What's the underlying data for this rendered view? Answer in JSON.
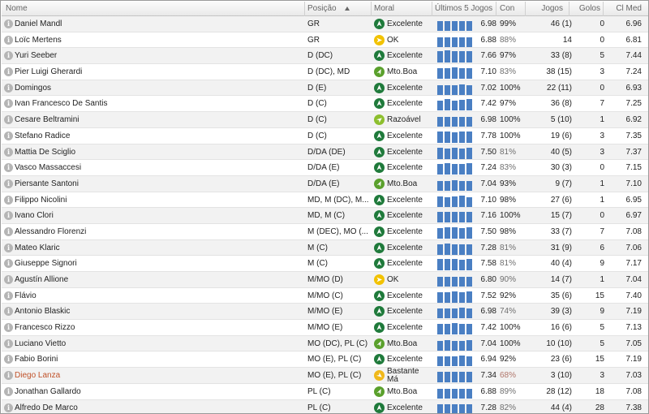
{
  "header": {
    "nome": "Nome",
    "posicao": "Posição",
    "moral": "Moral",
    "ultimos": "Últimos 5 Jogos",
    "con": "Con",
    "jogos": "Jogos",
    "golos": "Golos",
    "clmed": "Cl Med"
  },
  "colors": {
    "excelente": "#1f7a3b",
    "mto_boa": "#5aa02c",
    "razoavel": "#8dbf2e",
    "ok": "#f2c200",
    "bastante_ma": "#f0b81a",
    "bar": "#4a7fc3",
    "highlight_name": "#c0522a"
  },
  "players": [
    {
      "name": "Daniel Mandl",
      "pos": "GR",
      "moral": "Excelente",
      "moral_icon": "excelente-icon",
      "form": [
        0.78,
        0.78,
        0.78,
        0.78,
        0.78
      ],
      "avg": "6.98",
      "con": "99%",
      "jogos": "46 (1)",
      "golos": "0",
      "clmed": "6.96"
    },
    {
      "name": "Loïc Mertens",
      "pos": "GR",
      "moral": "OK",
      "moral_icon": "ok-icon",
      "form": [
        0.72,
        0.74,
        0.72,
        0.74,
        0.72
      ],
      "avg": "6.88",
      "con": "88%",
      "jogos": "14",
      "golos": "0",
      "clmed": "6.81"
    },
    {
      "name": "Yuri Seeber",
      "pos": "D (DC)",
      "moral": "Excelente",
      "moral_icon": "excelente-icon",
      "form": [
        0.85,
        0.95,
        0.85,
        0.85,
        0.85
      ],
      "avg": "7.66",
      "con": "97%",
      "jogos": "33 (8)",
      "golos": "5",
      "clmed": "7.44"
    },
    {
      "name": "Pier Luigi Gherardi",
      "pos": "D (DC), MD",
      "moral": "Mto.Boa",
      "moral_icon": "mto-boa-icon",
      "form": [
        0.8,
        0.8,
        0.9,
        0.8,
        0.8
      ],
      "avg": "7.10",
      "con": "83%",
      "jogos": "38 (15)",
      "golos": "3",
      "clmed": "7.24"
    },
    {
      "name": "Domingos",
      "pos": "D (E)",
      "moral": "Excelente",
      "moral_icon": "excelente-icon",
      "form": [
        0.78,
        0.78,
        0.78,
        0.8,
        0.78
      ],
      "avg": "7.02",
      "con": "100%",
      "jogos": "22 (11)",
      "golos": "0",
      "clmed": "6.93"
    },
    {
      "name": "Ivan Francesco De Santis",
      "pos": "D (C)",
      "moral": "Excelente",
      "moral_icon": "excelente-icon",
      "form": [
        0.78,
        0.85,
        0.75,
        0.8,
        0.85
      ],
      "avg": "7.42",
      "con": "97%",
      "jogos": "36 (8)",
      "golos": "7",
      "clmed": "7.25"
    },
    {
      "name": "Cesare Beltramini",
      "pos": "D (C)",
      "moral": "Razoável",
      "moral_icon": "razoavel-icon",
      "form": [
        0.78,
        0.78,
        0.78,
        0.78,
        0.78
      ],
      "avg": "6.98",
      "con": "100%",
      "jogos": "5 (10)",
      "golos": "1",
      "clmed": "6.92"
    },
    {
      "name": "Stefano Radice",
      "pos": "D (C)",
      "moral": "Excelente",
      "moral_icon": "excelente-icon",
      "form": [
        0.85,
        0.9,
        0.8,
        0.9,
        0.85
      ],
      "avg": "7.78",
      "con": "100%",
      "jogos": "19 (6)",
      "golos": "3",
      "clmed": "7.35"
    },
    {
      "name": "Mattia De Sciglio",
      "pos": "D/DA (DE)",
      "moral": "Excelente",
      "moral_icon": "excelente-icon",
      "form": [
        0.85,
        0.82,
        0.88,
        0.82,
        0.85
      ],
      "avg": "7.50",
      "con": "81%",
      "jogos": "40 (5)",
      "golos": "3",
      "clmed": "7.37"
    },
    {
      "name": "Vasco Massaccesi",
      "pos": "D/DA (E)",
      "moral": "Excelente",
      "moral_icon": "excelente-icon",
      "form": [
        0.8,
        0.85,
        0.8,
        0.8,
        0.85
      ],
      "avg": "7.24",
      "con": "83%",
      "jogos": "30 (3)",
      "golos": "0",
      "clmed": "7.15"
    },
    {
      "name": "Piersante Santoni",
      "pos": "D/DA (E)",
      "moral": "Mto.Boa",
      "moral_icon": "mto-boa-icon",
      "form": [
        0.78,
        0.78,
        0.8,
        0.78,
        0.78
      ],
      "avg": "7.04",
      "con": "93%",
      "jogos": "9 (7)",
      "golos": "1",
      "clmed": "7.10"
    },
    {
      "name": "Filippo Nicolini",
      "pos": "MD, M (DC), M...",
      "moral": "Excelente",
      "moral_icon": "excelente-icon",
      "form": [
        0.8,
        0.78,
        0.8,
        0.85,
        0.78
      ],
      "avg": "7.10",
      "con": "98%",
      "jogos": "27 (6)",
      "golos": "1",
      "clmed": "6.95"
    },
    {
      "name": "Ivano Clori",
      "pos": "MD, M (C)",
      "moral": "Excelente",
      "moral_icon": "excelente-icon",
      "form": [
        0.8,
        0.82,
        0.8,
        0.8,
        0.82
      ],
      "avg": "7.16",
      "con": "100%",
      "jogos": "15 (7)",
      "golos": "0",
      "clmed": "6.97"
    },
    {
      "name": "Alessandro Florenzi",
      "pos": "M (DEC), MO (...",
      "moral": "Excelente",
      "moral_icon": "excelente-icon",
      "form": [
        0.82,
        0.85,
        0.85,
        0.82,
        0.85
      ],
      "avg": "7.50",
      "con": "98%",
      "jogos": "33 (7)",
      "golos": "7",
      "clmed": "7.08"
    },
    {
      "name": "Mateo Klaric",
      "pos": "M (C)",
      "moral": "Excelente",
      "moral_icon": "excelente-icon",
      "form": [
        0.8,
        0.85,
        0.8,
        0.8,
        0.82
      ],
      "avg": "7.28",
      "con": "81%",
      "jogos": "31 (9)",
      "golos": "6",
      "clmed": "7.06"
    },
    {
      "name": "Giuseppe Signori",
      "pos": "M (C)",
      "moral": "Excelente",
      "moral_icon": "excelente-icon",
      "form": [
        0.85,
        0.9,
        0.85,
        0.8,
        0.85
      ],
      "avg": "7.58",
      "con": "81%",
      "jogos": "40 (4)",
      "golos": "9",
      "clmed": "7.17"
    },
    {
      "name": "Agustín Allione",
      "pos": "M/MO (D)",
      "moral": "OK",
      "moral_icon": "ok-icon",
      "form": [
        0.72,
        0.75,
        0.72,
        0.72,
        0.75
      ],
      "avg": "6.80",
      "con": "90%",
      "jogos": "14 (7)",
      "golos": "1",
      "clmed": "7.04"
    },
    {
      "name": "Flávio",
      "pos": "M/MO (C)",
      "moral": "Excelente",
      "moral_icon": "excelente-icon",
      "form": [
        0.82,
        0.8,
        0.85,
        0.82,
        0.85
      ],
      "avg": "7.52",
      "con": "92%",
      "jogos": "35 (6)",
      "golos": "15",
      "clmed": "7.40"
    },
    {
      "name": "Antonio Blaskic",
      "pos": "M/MO (E)",
      "moral": "Excelente",
      "moral_icon": "excelente-icon",
      "form": [
        0.78,
        0.78,
        0.78,
        0.8,
        0.78
      ],
      "avg": "6.98",
      "con": "74%",
      "jogos": "39 (3)",
      "golos": "9",
      "clmed": "7.19"
    },
    {
      "name": "Francesco Rizzo",
      "pos": "M/MO (E)",
      "moral": "Excelente",
      "moral_icon": "excelente-icon",
      "form": [
        0.8,
        0.8,
        0.85,
        0.8,
        0.82
      ],
      "avg": "7.42",
      "con": "100%",
      "jogos": "16 (6)",
      "golos": "5",
      "clmed": "7.13"
    },
    {
      "name": "Luciano Vietto",
      "pos": "MO (DC), PL (C)",
      "moral": "Mto.Boa",
      "moral_icon": "mto-boa-icon",
      "form": [
        0.78,
        0.8,
        0.78,
        0.78,
        0.8
      ],
      "avg": "7.04",
      "con": "100%",
      "jogos": "10 (10)",
      "golos": "5",
      "clmed": "7.05"
    },
    {
      "name": "Fabio Borini",
      "pos": "MO (E), PL (C)",
      "moral": "Excelente",
      "moral_icon": "excelente-icon",
      "form": [
        0.78,
        0.78,
        0.78,
        0.8,
        0.78
      ],
      "avg": "6.94",
      "con": "92%",
      "jogos": "23 (6)",
      "golos": "15",
      "clmed": "7.19"
    },
    {
      "name": "Diego Lanza",
      "pos": "MO (E), PL (C)",
      "moral": "Bastante Má",
      "moral_icon": "bastante-ma-icon",
      "form": [
        0.8,
        0.82,
        0.8,
        0.82,
        0.8
      ],
      "avg": "7.34",
      "con": "68%",
      "jogos": "3 (10)",
      "golos": "3",
      "clmed": "7.03",
      "highlight": true
    },
    {
      "name": "Jonathan Gallardo",
      "pos": "PL (C)",
      "moral": "Mto.Boa",
      "moral_icon": "mto-boa-icon",
      "form": [
        0.78,
        0.78,
        0.78,
        0.78,
        0.78
      ],
      "avg": "6.88",
      "con": "89%",
      "jogos": "28 (12)",
      "golos": "18",
      "clmed": "7.08"
    },
    {
      "name": "Alfredo De Marco",
      "pos": "PL (C)",
      "moral": "Excelente",
      "moral_icon": "excelente-icon",
      "form": [
        0.82,
        0.8,
        0.82,
        0.8,
        0.82
      ],
      "avg": "7.28",
      "con": "82%",
      "jogos": "44 (4)",
      "golos": "28",
      "clmed": "7.38"
    }
  ]
}
